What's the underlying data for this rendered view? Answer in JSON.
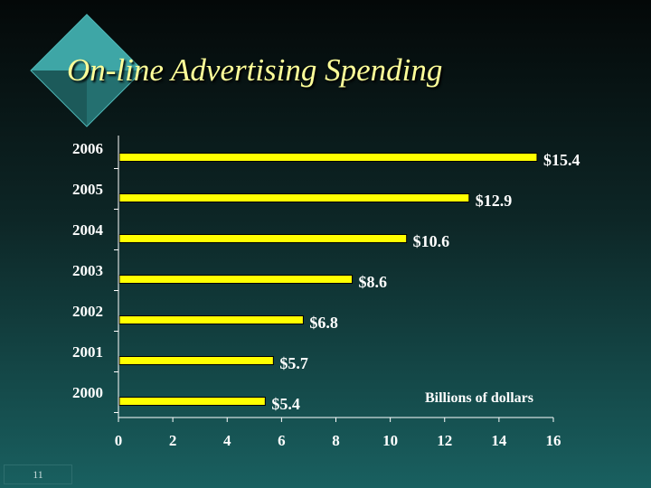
{
  "slide": {
    "title": "On-line Advertising Spending",
    "number": "11"
  },
  "colors": {
    "bar_fill": "#ffff00",
    "bar_edge": "#000000",
    "text": "#ffffff",
    "title": "#ffff99",
    "diamond_top": "#3ea6a6",
    "diamond_shade": "#1c5a5a"
  },
  "chart_data": {
    "type": "bar",
    "orientation": "horizontal",
    "categories": [
      "2006",
      "2005",
      "2004",
      "2003",
      "2002",
      "2001",
      "2000"
    ],
    "values": [
      15.4,
      12.9,
      10.6,
      8.6,
      6.8,
      5.7,
      5.4
    ],
    "value_labels": [
      "$15.4",
      "$12.9",
      "$10.6",
      "$8.6",
      "$6.8",
      "$5.7",
      "$5.4"
    ],
    "x_ticks": [
      "0",
      "2",
      "4",
      "6",
      "8",
      "10",
      "12",
      "14",
      "16"
    ],
    "xlim": [
      0,
      16
    ],
    "annotation": "Billions of dollars",
    "grid": false
  }
}
